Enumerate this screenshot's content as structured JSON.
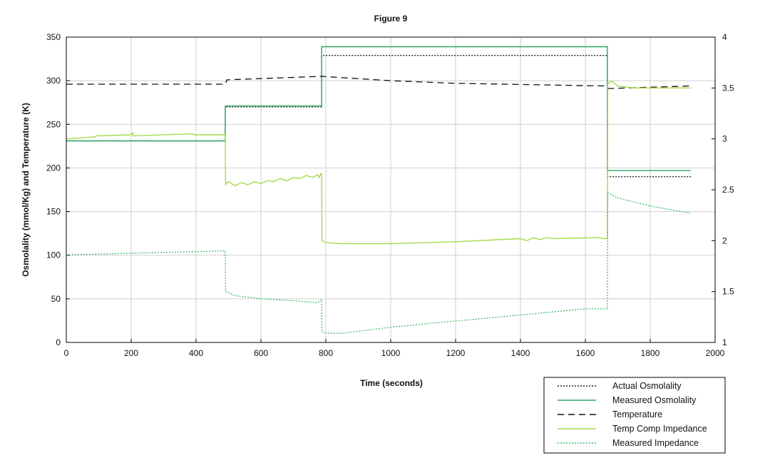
{
  "chart_data": {
    "type": "line",
    "title": "Figure 9",
    "xlabel": "Time (seconds)",
    "ylabel": "Osmolality (mmol/Kg) and Temperature (K)",
    "y2label": "",
    "xlim": [
      0,
      2000
    ],
    "ylim": [
      0,
      350
    ],
    "y2lim": [
      1,
      4
    ],
    "xticks": [
      0,
      200,
      400,
      600,
      800,
      1000,
      1200,
      1400,
      1600,
      1800,
      2000
    ],
    "yticks": [
      0,
      50,
      100,
      150,
      200,
      250,
      300,
      350
    ],
    "y2ticks": [
      "1",
      "1.5",
      "2",
      "2.5",
      "3",
      "3.5",
      "4"
    ],
    "grid": true,
    "legend_position": "bottom-right, outside plot",
    "series": [
      {
        "name": "Actual Osmolality",
        "axis": "left",
        "style": "dotted",
        "color": "#222222",
        "points": [
          [
            0,
            231
          ],
          [
            490,
            231
          ],
          [
            490,
            270
          ],
          [
            787,
            270
          ],
          [
            787,
            329
          ],
          [
            1668,
            329
          ],
          [
            1668,
            190
          ],
          [
            1925,
            190
          ]
        ]
      },
      {
        "name": "Measured Osmolality",
        "axis": "left",
        "style": "solid",
        "color": "#2ea563",
        "points": [
          [
            0,
            231
          ],
          [
            490,
            231
          ],
          [
            490,
            271
          ],
          [
            787,
            271
          ],
          [
            787,
            339
          ],
          [
            1668,
            339
          ],
          [
            1668,
            197
          ],
          [
            1925,
            197
          ]
        ]
      },
      {
        "name": "Temperature",
        "axis": "left",
        "style": "dashed",
        "color": "#111111",
        "points": [
          [
            0,
            296
          ],
          [
            490,
            296
          ],
          [
            495,
            301
          ],
          [
            787,
            305
          ],
          [
            1000,
            300
          ],
          [
            1200,
            297
          ],
          [
            1660,
            294
          ],
          [
            1672,
            291
          ],
          [
            1925,
            294
          ]
        ]
      },
      {
        "name": "Temp Comp Impedance",
        "axis": "right",
        "style": "solid",
        "color": "#a6d94a",
        "points": [
          [
            0,
            3.0
          ],
          [
            90,
            3.02
          ],
          [
            91,
            3.03
          ],
          [
            200,
            3.04
          ],
          [
            205,
            3.06
          ],
          [
            206,
            3.03
          ],
          [
            390,
            3.05
          ],
          [
            395,
            3.04
          ],
          [
            490,
            3.04
          ],
          [
            491,
            2.55
          ],
          [
            500,
            2.58
          ],
          [
            520,
            2.54
          ],
          [
            540,
            2.57
          ],
          [
            560,
            2.55
          ],
          [
            580,
            2.58
          ],
          [
            600,
            2.56
          ],
          [
            620,
            2.59
          ],
          [
            640,
            2.58
          ],
          [
            660,
            2.61
          ],
          [
            680,
            2.59
          ],
          [
            700,
            2.62
          ],
          [
            720,
            2.61
          ],
          [
            740,
            2.64
          ],
          [
            760,
            2.62
          ],
          [
            775,
            2.65
          ],
          [
            780,
            2.62
          ],
          [
            785,
            2.66
          ],
          [
            787,
            2.66
          ],
          [
            788,
            2.0
          ],
          [
            800,
            1.98
          ],
          [
            850,
            1.97
          ],
          [
            1000,
            1.97
          ],
          [
            1200,
            1.99
          ],
          [
            1400,
            2.02
          ],
          [
            1420,
            2.0
          ],
          [
            1440,
            2.03
          ],
          [
            1460,
            2.01
          ],
          [
            1480,
            2.03
          ],
          [
            1500,
            2.02
          ],
          [
            1640,
            2.03
          ],
          [
            1660,
            2.02
          ],
          [
            1668,
            2.02
          ],
          [
            1669,
            3.54
          ],
          [
            1680,
            3.57
          ],
          [
            1700,
            3.52
          ],
          [
            1750,
            3.5
          ],
          [
            1925,
            3.5
          ]
        ]
      },
      {
        "name": "Measured Impedance",
        "axis": "right",
        "style": "dotted",
        "color": "#3dba6a",
        "points": [
          [
            0,
            1.86
          ],
          [
            490,
            1.9
          ],
          [
            491,
            1.5
          ],
          [
            520,
            1.46
          ],
          [
            600,
            1.43
          ],
          [
            700,
            1.41
          ],
          [
            775,
            1.39
          ],
          [
            780,
            1.41
          ],
          [
            787,
            1.42
          ],
          [
            788,
            1.1
          ],
          [
            810,
            1.09
          ],
          [
            850,
            1.09
          ],
          [
            1000,
            1.15
          ],
          [
            1200,
            1.21
          ],
          [
            1400,
            1.27
          ],
          [
            1600,
            1.33
          ],
          [
            1660,
            1.33
          ],
          [
            1668,
            1.33
          ],
          [
            1669,
            2.47
          ],
          [
            1700,
            2.42
          ],
          [
            1800,
            2.34
          ],
          [
            1925,
            2.27
          ]
        ]
      }
    ]
  }
}
